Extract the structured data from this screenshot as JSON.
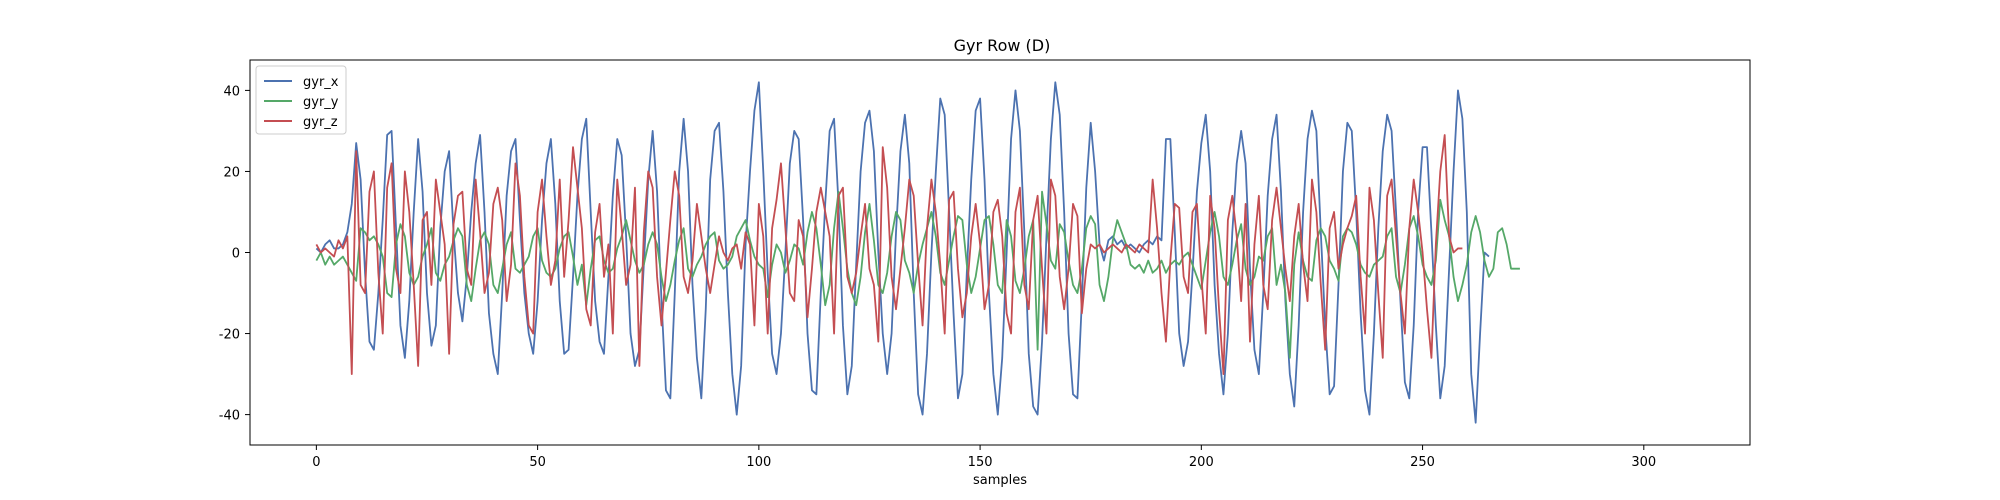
{
  "chart_data": {
    "type": "line",
    "title": "Gyr Row (D)",
    "xlabel": "samples",
    "ylabel": "",
    "xlim": [
      -15,
      324
    ],
    "ylim": [
      -47.5,
      47.5
    ],
    "x_ticks": [
      0,
      50,
      100,
      150,
      200,
      250,
      300
    ],
    "y_ticks": [
      -40,
      -20,
      0,
      20,
      40
    ],
    "grid": false,
    "legend_position": "top-left",
    "series": [
      {
        "name": "gyr_x",
        "color": "#4c72b0",
        "values": [
          1,
          0,
          2,
          3,
          1,
          1,
          2,
          5,
          12,
          27,
          18,
          -5,
          -22,
          -24,
          -10,
          8,
          29,
          30,
          6,
          -18,
          -26,
          -12,
          10,
          28,
          15,
          -10,
          -23,
          -18,
          6,
          20,
          25,
          5,
          -10,
          -17,
          -6,
          10,
          22,
          29,
          10,
          -15,
          -25,
          -30,
          -10,
          14,
          25,
          28,
          8,
          -10,
          -20,
          -25,
          -12,
          8,
          22,
          28,
          12,
          -12,
          -25,
          -24,
          -6,
          14,
          28,
          33,
          10,
          -12,
          -22,
          -25,
          -6,
          14,
          28,
          24,
          4,
          -20,
          -28,
          -24,
          -3,
          18,
          30,
          15,
          -12,
          -34,
          -36,
          -10,
          20,
          33,
          20,
          -8,
          -26,
          -36,
          -14,
          18,
          30,
          32,
          15,
          -10,
          -30,
          -40,
          -28,
          2,
          20,
          35,
          42,
          20,
          -5,
          -25,
          -30,
          -20,
          0,
          22,
          30,
          28,
          8,
          -20,
          -34,
          -35,
          -10,
          12,
          30,
          33,
          12,
          -18,
          -35,
          -28,
          -3,
          20,
          32,
          35,
          25,
          0,
          -20,
          -30,
          -20,
          5,
          25,
          34,
          22,
          -10,
          -35,
          -40,
          -25,
          0,
          20,
          38,
          34,
          10,
          -15,
          -36,
          -30,
          -5,
          18,
          35,
          38,
          18,
          -10,
          -30,
          -40,
          -26,
          0,
          28,
          40,
          30,
          5,
          -25,
          -38,
          -40,
          -22,
          4,
          28,
          42,
          34,
          10,
          -20,
          -35,
          -36,
          -12,
          16,
          32,
          20,
          2,
          -2,
          3,
          4,
          2,
          3,
          1,
          2,
          1,
          0,
          2,
          3,
          2,
          4,
          3,
          28,
          28,
          5,
          -20,
          -28,
          -22,
          -5,
          15,
          27,
          34,
          20,
          -8,
          -25,
          -35,
          -20,
          5,
          22,
          30,
          22,
          -4,
          -24,
          -30,
          -10,
          14,
          28,
          34,
          15,
          -12,
          -30,
          -38,
          -18,
          10,
          28,
          35,
          30,
          5,
          -18,
          -35,
          -33,
          -8,
          20,
          32,
          30,
          10,
          -15,
          -34,
          -40,
          -20,
          6,
          25,
          34,
          30,
          10,
          -12,
          -32,
          -36,
          -18,
          10,
          26,
          26,
          5,
          -18,
          -36,
          -28,
          -4,
          20,
          40,
          33,
          10,
          -30,
          -42,
          -20,
          0,
          -1
        ]
      },
      {
        "name": "gyr_y",
        "color": "#55a868",
        "values": [
          -2,
          0,
          -3,
          -1,
          -3,
          -2,
          -1,
          -3,
          -5,
          -7,
          6,
          5,
          3,
          4,
          2,
          -1,
          -10,
          -11,
          2,
          7,
          4,
          -5,
          -8,
          -6,
          -1,
          2,
          6,
          -5,
          -7,
          -3,
          -1,
          3,
          6,
          4,
          -8,
          -12,
          -4,
          3,
          5,
          2,
          -8,
          -10,
          -4,
          2,
          5,
          -4,
          -5,
          -3,
          -1,
          4,
          6,
          -2,
          -5,
          -6,
          -4,
          1,
          4,
          5,
          -1,
          -8,
          -3,
          -13,
          -4,
          3,
          4,
          -2,
          -5,
          -4,
          1,
          4,
          8,
          3,
          -2,
          -5,
          -3,
          2,
          5,
          2,
          -6,
          -12,
          -8,
          -2,
          3,
          6,
          -4,
          -6,
          -3,
          -1,
          2,
          4,
          5,
          -2,
          -4,
          -3,
          -1,
          4,
          6,
          8,
          3,
          -1,
          -3,
          -4,
          -11,
          -3,
          2,
          0,
          -5,
          -2,
          2,
          1,
          -3,
          5,
          10,
          6,
          -3,
          -13,
          -8,
          6,
          15,
          6,
          -4,
          -10,
          -13,
          -6,
          5,
          12,
          3,
          -8,
          -10,
          -5,
          4,
          10,
          8,
          -2,
          -5,
          -10,
          -3,
          2,
          6,
          10,
          4,
          -5,
          -8,
          -2,
          4,
          9,
          8,
          -3,
          -10,
          -6,
          1,
          8,
          9,
          2,
          -8,
          -10,
          8,
          4,
          -7,
          -10,
          -4,
          4,
          8,
          -24,
          15,
          7,
          -2,
          -4,
          7,
          5,
          -2,
          -8,
          -10,
          -4,
          6,
          9,
          7,
          -8,
          -12,
          -6,
          3,
          8,
          5,
          2,
          -3,
          -4,
          -3,
          -5,
          -2,
          -5,
          -4,
          -2,
          -5,
          -3,
          -2,
          -3,
          -1,
          0,
          -3,
          -6,
          -9,
          -2,
          5,
          10,
          4,
          -6,
          -8,
          -3,
          3,
          7,
          -4,
          -8,
          -6,
          -1,
          -2,
          4,
          6,
          -8,
          -3,
          -10,
          -26,
          -3,
          5,
          -2,
          -6,
          -7,
          3,
          6,
          4,
          -2,
          -4,
          -7,
          4,
          6,
          5,
          2,
          -3,
          -5,
          -6,
          -3,
          -2,
          -1,
          4,
          6,
          -6,
          -10,
          -3,
          6,
          9,
          4,
          -3,
          -6,
          -8,
          -2,
          13,
          8,
          4,
          -6,
          -12,
          -8,
          -3,
          5,
          9,
          5,
          -2,
          -6,
          -4,
          5,
          6,
          2,
          -4,
          -4,
          -4
        ]
      },
      {
        "name": "gyr_z",
        "color": "#c44e52",
        "values": [
          2,
          0,
          1,
          0,
          -1,
          3,
          1,
          4,
          -30,
          25,
          -8,
          -10,
          15,
          20,
          -5,
          -20,
          16,
          22,
          -4,
          -10,
          20,
          10,
          -8,
          -28,
          8,
          10,
          -8,
          18,
          10,
          2,
          -25,
          7,
          14,
          15,
          -4,
          -8,
          18,
          5,
          -10,
          -5,
          12,
          16,
          8,
          -12,
          -3,
          22,
          14,
          -6,
          -18,
          -20,
          10,
          18,
          4,
          -8,
          -2,
          18,
          -6,
          8,
          26,
          16,
          6,
          -14,
          -18,
          5,
          12,
          -6,
          2,
          -20,
          18,
          6,
          -8,
          -3,
          16,
          -28,
          5,
          20,
          16,
          -6,
          -18,
          -5,
          8,
          20,
          14,
          -6,
          -10,
          -2,
          12,
          4,
          -4,
          -10,
          -3,
          4,
          0,
          -2,
          1,
          2,
          -4,
          5,
          2,
          -18,
          12,
          4,
          -20,
          6,
          13,
          22,
          6,
          -10,
          -12,
          8,
          4,
          -16,
          -4,
          10,
          16,
          10,
          4,
          -20,
          14,
          16,
          -6,
          -10,
          -5,
          4,
          12,
          -4,
          -8,
          -22,
          26,
          16,
          -6,
          -14,
          -4,
          6,
          18,
          14,
          -3,
          -18,
          6,
          18,
          10,
          -3,
          -20,
          13,
          15,
          -4,
          -16,
          -10,
          4,
          12,
          2,
          -14,
          -8,
          10,
          13,
          4,
          -15,
          -20,
          10,
          16,
          -8,
          -14,
          8,
          14,
          -4,
          -20,
          18,
          14,
          -6,
          -14,
          -4,
          12,
          9,
          -15,
          -4,
          2,
          1,
          2,
          0,
          1,
          2,
          1,
          0,
          2,
          1,
          0,
          2,
          1,
          0,
          18,
          6,
          -10,
          -22,
          -2,
          12,
          11,
          -6,
          -10,
          10,
          12,
          -6,
          -20,
          14,
          6,
          -14,
          -30,
          8,
          14,
          4,
          -12,
          12,
          -22,
          2,
          14,
          -8,
          -14,
          8,
          16,
          6,
          -4,
          -12,
          4,
          12,
          -3,
          -12,
          18,
          10,
          -8,
          -24,
          6,
          10,
          -4,
          2,
          6,
          9,
          14,
          -6,
          -20,
          16,
          8,
          -10,
          -26,
          14,
          18,
          4,
          -10,
          -20,
          6,
          18,
          10,
          0,
          -14,
          -26,
          2,
          20,
          29,
          4,
          0,
          1,
          1
        ]
      }
    ]
  }
}
